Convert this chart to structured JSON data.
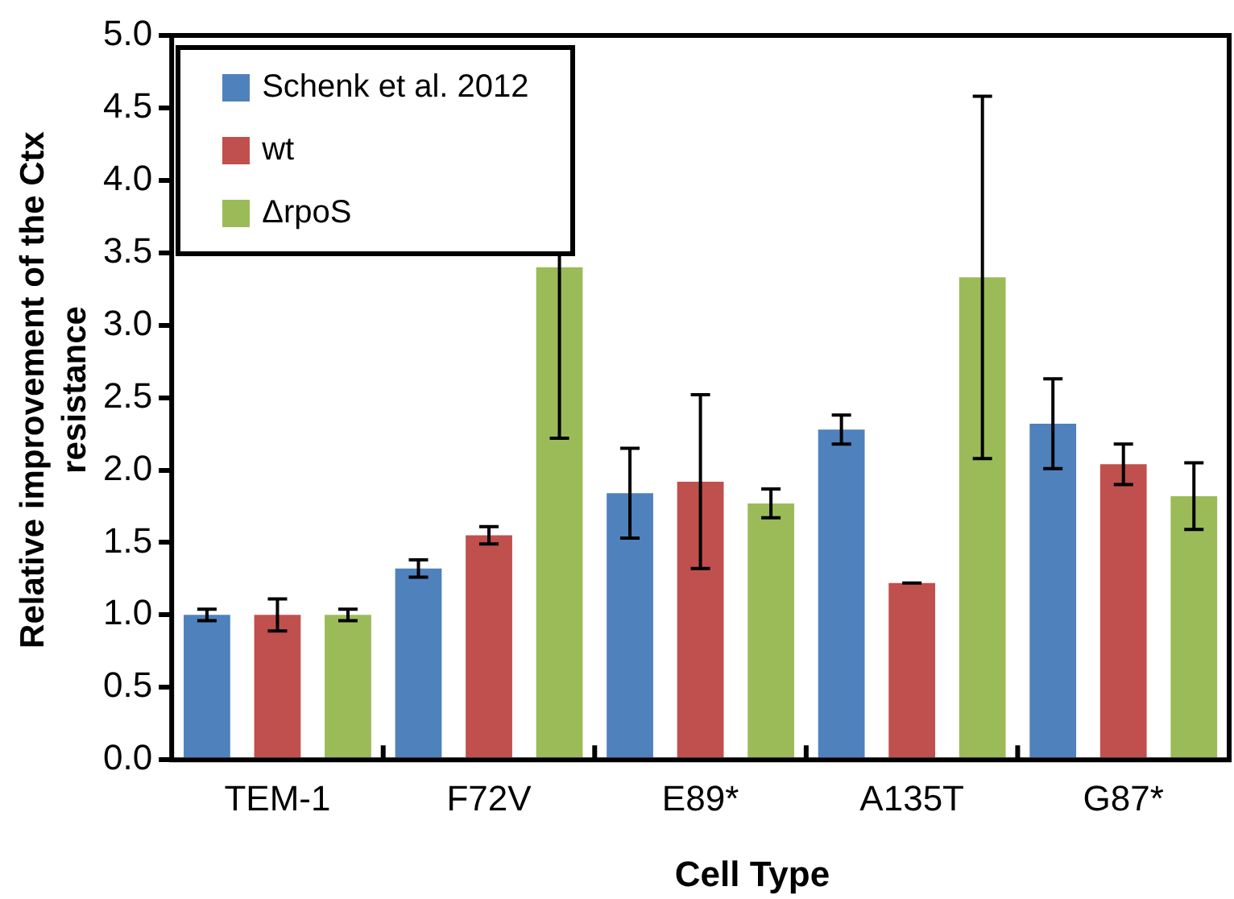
{
  "chart_data": {
    "type": "bar",
    "xlabel": "Cell Type",
    "ylabel": "Relative improvement of the Ctx resistance",
    "categories": [
      "TEM-1",
      "F72V",
      "E89*",
      "A135T",
      "G87*"
    ],
    "series": [
      {
        "name": "Schenk et al. 2012",
        "color": "#4f81bd",
        "values": [
          1.0,
          1.32,
          1.84,
          2.28,
          2.32
        ],
        "errors": [
          0.04,
          0.06,
          0.31,
          0.1,
          0.31
        ]
      },
      {
        "name": "wt",
        "color": "#c0504d",
        "values": [
          1.0,
          1.55,
          1.92,
          1.22,
          2.04
        ],
        "errors": [
          0.11,
          0.06,
          0.6,
          0,
          0.14
        ]
      },
      {
        "name": "ΔrpoS",
        "color": "#9bbb59",
        "values": [
          1.0,
          3.4,
          1.77,
          3.33,
          1.82
        ],
        "errors": [
          0.04,
          1.18,
          0.1,
          1.25,
          0.23
        ]
      }
    ],
    "ylim": [
      0,
      5
    ],
    "yticks": [
      {
        "value": 0,
        "label": "0.0"
      },
      0.5,
      {
        "value": 1,
        "label": "1.0"
      },
      1.5,
      {
        "value": 2,
        "label": "2.0"
      },
      2.5,
      {
        "value": 3,
        "label": "3.0"
      },
      3.5,
      {
        "value": 4,
        "label": "4.0"
      },
      4.5,
      {
        "value": 5,
        "label": "5.0"
      }
    ],
    "grid": false,
    "legend": "top left"
  }
}
